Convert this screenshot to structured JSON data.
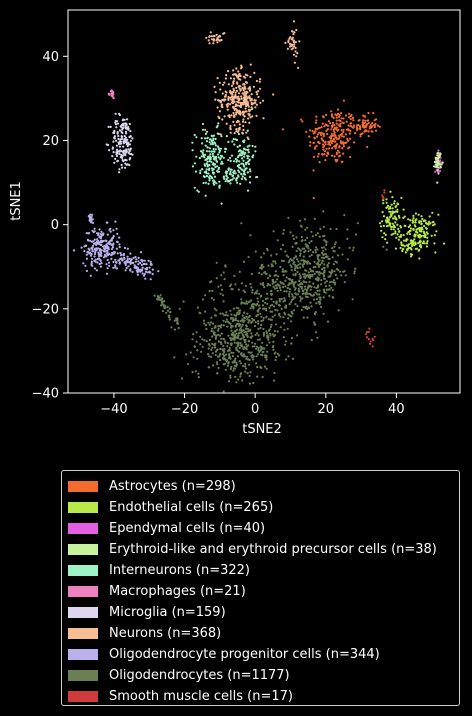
{
  "chart_data": {
    "type": "scatter",
    "xlabel": "tSNE2",
    "ylabel": "tSNE1",
    "xlim": [
      -53,
      58
    ],
    "ylim": [
      -40,
      51
    ],
    "x_ticks": [
      "−40",
      "−20",
      "0",
      "20",
      "40"
    ],
    "x_tick_values": [
      -40,
      -20,
      0,
      20,
      40
    ],
    "y_ticks": [
      "40",
      "20",
      "0",
      "−20",
      "−40"
    ],
    "y_tick_values": [
      40,
      20,
      0,
      -20,
      -40
    ],
    "legend_placement": "below",
    "series": [
      {
        "name": "Astrocytes (n=298)",
        "color": "#f26b2f",
        "n": 298,
        "clusters": [
          {
            "cx": 22,
            "cy": 21,
            "sx": 3.5,
            "sy": 3.5,
            "w": 0.75
          },
          {
            "cx": 31,
            "cy": 23.5,
            "sx": 1.8,
            "sy": 1.3,
            "w": 0.25
          }
        ]
      },
      {
        "name": "Endothelial cells (n=265)",
        "color": "#b8ea4c",
        "n": 265,
        "clusters": [
          {
            "cx": 38.5,
            "cy": 1.5,
            "sx": 1.5,
            "sy": 2.5,
            "w": 0.35
          },
          {
            "cx": 46.5,
            "cy": -2,
            "sx": 2.5,
            "sy": 2.2,
            "w": 0.55
          },
          {
            "cx": 43.5,
            "cy": -5.5,
            "sx": 1.5,
            "sy": 0.8,
            "w": 0.1
          }
        ]
      },
      {
        "name": "Ependymal cells (n=40)",
        "color": "#e35ee3",
        "n": 40,
        "clusters": [
          {
            "cx": 51.8,
            "cy": 15,
            "sx": 0.4,
            "sy": 1.3,
            "w": 1.0
          }
        ]
      },
      {
        "name": "Erythroid-like and erythroid precursor cells (n=38)",
        "color": "#c5f29b",
        "n": 38,
        "clusters": [
          {
            "cx": 51.8,
            "cy": 15,
            "sx": 0.45,
            "sy": 1.3,
            "w": 1.0
          }
        ]
      },
      {
        "name": "Interneurons (n=322)",
        "color": "#9ff2c4",
        "n": 322,
        "clusters": [
          {
            "cx": -12.5,
            "cy": 15.5,
            "sx": 2.2,
            "sy": 3.5,
            "w": 0.5
          },
          {
            "cx": -3.5,
            "cy": 16.5,
            "sx": 1.6,
            "sy": 3.2,
            "w": 0.3
          },
          {
            "cx": -7.5,
            "cy": 11.5,
            "sx": 3.5,
            "sy": 1.0,
            "w": 0.2
          }
        ]
      },
      {
        "name": "Macrophages (n=21)",
        "color": "#ee82c0",
        "n": 21,
        "clusters": [
          {
            "cx": -40.5,
            "cy": 31,
            "sx": 0.3,
            "sy": 0.5,
            "w": 1.0
          }
        ]
      },
      {
        "name": "Microglia (n=159)",
        "color": "#dcd7ee",
        "n": 159,
        "clusters": [
          {
            "cx": -37.5,
            "cy": 19.5,
            "sx": 1.7,
            "sy": 3.3,
            "w": 1.0
          }
        ]
      },
      {
        "name": "Neurons (n=368)",
        "color": "#f7bd94",
        "n": 368,
        "clusters": [
          {
            "cx": -4.5,
            "cy": 29.5,
            "sx": 3.0,
            "sy": 3.3,
            "w": 0.78
          },
          {
            "cx": -11,
            "cy": 44.5,
            "sx": 1.4,
            "sy": 0.8,
            "w": 0.08
          },
          {
            "cx": 10.5,
            "cy": 43,
            "sx": 0.8,
            "sy": 2.0,
            "w": 0.1
          },
          {
            "cx": -4.5,
            "cy": 35.5,
            "sx": 0.8,
            "sy": 0.4,
            "w": 0.04
          }
        ]
      },
      {
        "name": "Oligodendrocyte progenitor cells (n=344)",
        "color": "#bab1ec",
        "n": 344,
        "clusters": [
          {
            "cx": -43.5,
            "cy": -5.5,
            "sx": 2.6,
            "sy": 2.5,
            "w": 0.62
          },
          {
            "cx": -32.5,
            "cy": -10,
            "sx": 2.0,
            "sy": 1.2,
            "w": 0.2
          },
          {
            "cx": -37,
            "cy": -8.5,
            "sx": 2.0,
            "sy": 1.0,
            "w": 0.12
          },
          {
            "cx": -46.5,
            "cy": 1.5,
            "sx": 0.3,
            "sy": 0.8,
            "w": 0.06
          }
        ]
      },
      {
        "name": "Oligodendrocytes (n=1177)",
        "color": "#6b7f55",
        "n": 1177,
        "line_clusters": [
          {
            "x0": -28,
            "y0": -16,
            "x1": -22,
            "y1": -24,
            "spread": 0.7,
            "w": 0.04
          },
          {
            "x0": -13,
            "y0": -28,
            "x1": 22,
            "y1": -8,
            "spread": 6.0,
            "w": 0.5
          }
        ],
        "clusters": [
          {
            "cx": -4,
            "cy": -29,
            "sx": 6.0,
            "sy": 4.0,
            "w": 0.26
          },
          {
            "cx": 15,
            "cy": -12,
            "sx": 5.0,
            "sy": 4.5,
            "w": 0.2
          }
        ]
      },
      {
        "name": "Smooth muscle cells (n=17)",
        "color": "#cf3a3a",
        "n": 17,
        "clusters": [
          {
            "cx": 32.5,
            "cy": -27.5,
            "sx": 0.6,
            "sy": 1.0,
            "w": 0.7
          },
          {
            "cx": 36.5,
            "cy": 7,
            "sx": 0.3,
            "sy": 1.2,
            "w": 0.3
          }
        ]
      }
    ]
  }
}
